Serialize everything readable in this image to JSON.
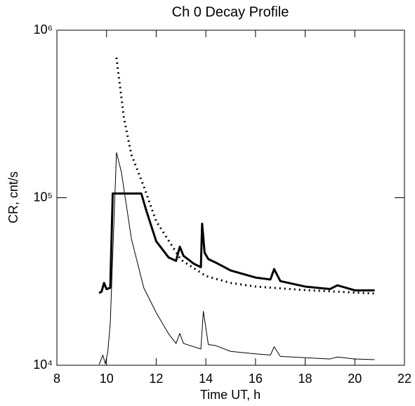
{
  "chart_data": {
    "type": "line",
    "title": "Ch 0 Decay Profile",
    "xlabel": "Time UT, h",
    "ylabel": "CR, cnt/s",
    "xlim": [
      8,
      22
    ],
    "xticks": [
      8,
      10,
      12,
      14,
      16,
      18,
      20,
      22
    ],
    "ylim": [
      10000,
      1000000
    ],
    "yscale": "log",
    "yticks": [
      {
        "value": 10000,
        "label": "10⁴"
      },
      {
        "value": 100000,
        "label": "10⁵"
      },
      {
        "value": 1000000,
        "label": "10⁶"
      }
    ],
    "series": [
      {
        "color": "#000000",
        "linewidth": 3,
        "dash": "none",
        "x": [
          9.7,
          9.8,
          9.9,
          10.0,
          10.15,
          10.25,
          10.3,
          11.4,
          11.6,
          12.0,
          12.5,
          12.8,
          12.95,
          13.1,
          13.5,
          13.8,
          13.85,
          13.95,
          14.1,
          14.4,
          15.0,
          16.0,
          16.6,
          16.75,
          17.0,
          18.0,
          19.0,
          19.3,
          20.0,
          20.8
        ],
        "values": [
          27000,
          27500,
          31000,
          28500,
          29000,
          106000,
          106000,
          106000,
          84000,
          55000,
          44000,
          42000,
          51000,
          45000,
          40500,
          38500,
          70000,
          47000,
          43000,
          41000,
          36800,
          33400,
          32500,
          37500,
          31800,
          29500,
          28500,
          30000,
          28000,
          28000
        ]
      },
      {
        "color": "#000000",
        "linewidth": 1,
        "dash": "none",
        "x": [
          9.7,
          9.85,
          9.95,
          10.05,
          10.15,
          10.4,
          10.6,
          11.0,
          11.5,
          12.0,
          12.5,
          12.8,
          12.95,
          13.1,
          13.8,
          13.9,
          14.1,
          14.4,
          15.0,
          16.0,
          16.6,
          16.75,
          17.0,
          18.0,
          19.0,
          19.3,
          20.0,
          20.8
        ],
        "values": [
          10100,
          11500,
          10200,
          12000,
          17800,
          186000,
          142000,
          57000,
          29000,
          20600,
          15400,
          13500,
          15500,
          13500,
          12500,
          21000,
          13300,
          13100,
          12100,
          11700,
          11500,
          12900,
          11300,
          11100,
          10900,
          11200,
          10900,
          10800
        ]
      },
      {
        "color": "#000000",
        "linewidth": 3,
        "dash": "2 5",
        "x": [
          10.4,
          10.7,
          11.0,
          11.5,
          12.0,
          13.0,
          14.0,
          15.0,
          16.0,
          18.0,
          20.8
        ],
        "values": [
          686000,
          300000,
          181000,
          117000,
          72400,
          42600,
          34100,
          31000,
          29500,
          28100,
          26800
        ]
      }
    ]
  }
}
